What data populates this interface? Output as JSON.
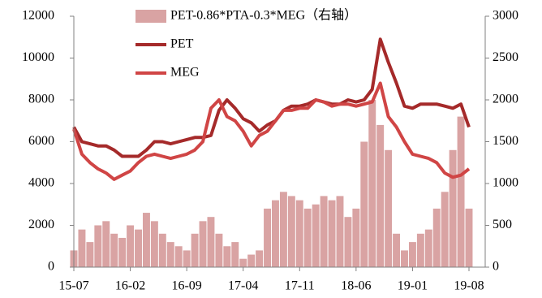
{
  "chart_data": {
    "type": "combo",
    "categories": [
      "15-07",
      null,
      null,
      null,
      null,
      null,
      null,
      "16-02",
      null,
      null,
      null,
      null,
      null,
      null,
      "16-09",
      null,
      null,
      null,
      null,
      null,
      null,
      "17-04",
      null,
      null,
      null,
      null,
      null,
      null,
      "17-11",
      null,
      null,
      null,
      null,
      null,
      null,
      "18-06",
      null,
      null,
      null,
      null,
      null,
      null,
      "19-01",
      null,
      null,
      null,
      null,
      null,
      null,
      "19-08"
    ],
    "series": [
      {
        "name": "PET-0.86*PTA-0.3*MEG（右轴）",
        "type": "bar",
        "axis": "y2",
        "color": "#d9a3a3",
        "values": [
          200,
          450,
          300,
          500,
          550,
          400,
          350,
          500,
          450,
          650,
          550,
          400,
          300,
          250,
          200,
          400,
          550,
          600,
          400,
          250,
          300,
          100,
          150,
          200,
          700,
          800,
          900,
          850,
          800,
          700,
          750,
          850,
          800,
          850,
          600,
          700,
          1500,
          2000,
          1700,
          1400,
          400,
          200,
          300,
          400,
          450,
          700,
          900,
          1400,
          1800,
          700
        ]
      },
      {
        "name": "PET",
        "type": "line",
        "color": "#a52a2a",
        "values": [
          6700,
          6000,
          5900,
          5800,
          5800,
          5600,
          5300,
          5300,
          5300,
          5600,
          6000,
          6000,
          5900,
          6000,
          6100,
          6200,
          6200,
          6300,
          7500,
          8000,
          7600,
          7100,
          6900,
          6500,
          6800,
          7000,
          7500,
          7700,
          7700,
          7800,
          8000,
          7900,
          7800,
          7800,
          8000,
          7900,
          8000,
          8500,
          10900,
          9800,
          8800,
          7700,
          7600,
          7800,
          7800,
          7800,
          7700,
          7600,
          7800,
          6700
        ]
      },
      {
        "name": "MEG",
        "type": "line",
        "color": "#d04545",
        "values": [
          6600,
          5400,
          5000,
          4700,
          4500,
          4200,
          4400,
          4600,
          5000,
          5300,
          5400,
          5300,
          5200,
          5300,
          5400,
          5600,
          6000,
          7600,
          8000,
          7200,
          7000,
          6500,
          5800,
          6300,
          6500,
          7000,
          7500,
          7500,
          7600,
          7600,
          8000,
          7900,
          7700,
          7800,
          7800,
          7700,
          7800,
          7900,
          8800,
          7200,
          6700,
          6000,
          5400,
          5300,
          5200,
          5000,
          4500,
          4300,
          4400,
          4700
        ]
      }
    ],
    "ylim": [
      0,
      12000
    ],
    "yticks": [
      0,
      2000,
      4000,
      6000,
      8000,
      10000,
      12000
    ],
    "y2lim": [
      0,
      3000
    ],
    "y2ticks": [
      0,
      500,
      1000,
      1500,
      2000,
      2500,
      3000
    ]
  }
}
